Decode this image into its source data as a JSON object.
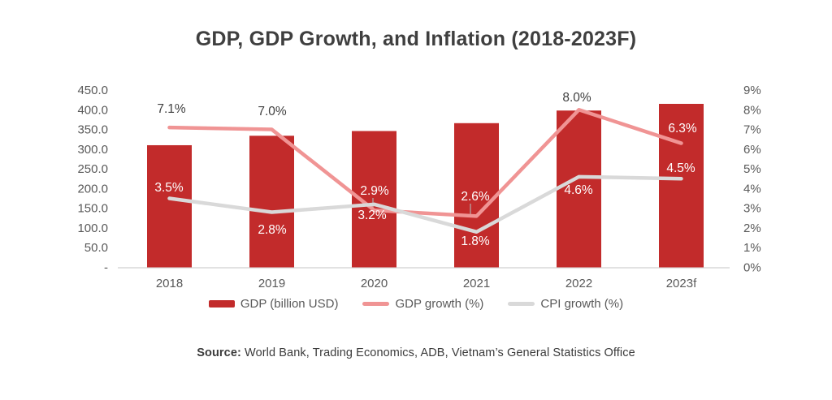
{
  "title": "GDP, GDP Growth, and Inflation (2018-2023F)",
  "source": {
    "label": "Source:",
    "text": " World Bank, Trading Economics, ADB, Vietnam’s General Statistics Office"
  },
  "legend": [
    {
      "label": "GDP (billion USD)",
      "type": "bar",
      "color": "#c22b2b"
    },
    {
      "label": "GDP growth (%)",
      "type": "line",
      "color": "#f09494"
    },
    {
      "label": "CPI growth (%)",
      "type": "line",
      "color": "#d9d9d9"
    }
  ],
  "colors": {
    "bar_red": "#c22b2b",
    "gdp_growth_pink": "#f09494",
    "cpi_gray": "#d9d9d9",
    "dark_text": "#3f3f3f",
    "axis_text": "#595959",
    "white_label": "#ffffff",
    "axis_line": "#d9d9d9"
  },
  "chart_data": {
    "type": "bar",
    "subtype": "combo bar + line, dual axis",
    "title": "GDP, GDP Growth, and Inflation (2018-2023F)",
    "categories": [
      "2018",
      "2019",
      "2020",
      "2021",
      "2022",
      "2023f"
    ],
    "series": [
      {
        "name": "GDP (billion USD)",
        "type": "bar",
        "axis": "left",
        "color": "#c22b2b",
        "values": [
          310,
          334,
          346,
          366,
          398,
          415
        ]
      },
      {
        "name": "GDP growth (%)",
        "type": "line",
        "axis": "right",
        "color": "#f09494",
        "values": [
          7.1,
          7.0,
          2.9,
          2.6,
          8.0,
          6.3
        ],
        "labels": [
          "7.1%",
          "7.0%",
          "2.9%",
          "2.6%",
          "8.0%",
          "6.3%"
        ]
      },
      {
        "name": "CPI growth (%)",
        "type": "line",
        "axis": "right",
        "color": "#d9d9d9",
        "values": [
          3.5,
          2.8,
          3.2,
          1.8,
          4.6,
          4.5
        ],
        "labels": [
          "3.5%",
          "2.8%",
          "3.2%",
          "1.8%",
          "4.6%",
          "4.5%"
        ]
      }
    ],
    "left_axis": {
      "min": 0,
      "max": 450,
      "ticks": [
        "450.0",
        "400.0",
        "350.0",
        "300.0",
        "250.0",
        "200.0",
        "150.0",
        "100.0",
        "50.0",
        "-"
      ]
    },
    "right_axis": {
      "min": 0,
      "max": 9,
      "ticks": [
        "9%",
        "8%",
        "7%",
        "6%",
        "5%",
        "4%",
        "3%",
        "2%",
        "1%",
        "0%"
      ]
    },
    "grid": false,
    "legend_position": "bottom"
  }
}
